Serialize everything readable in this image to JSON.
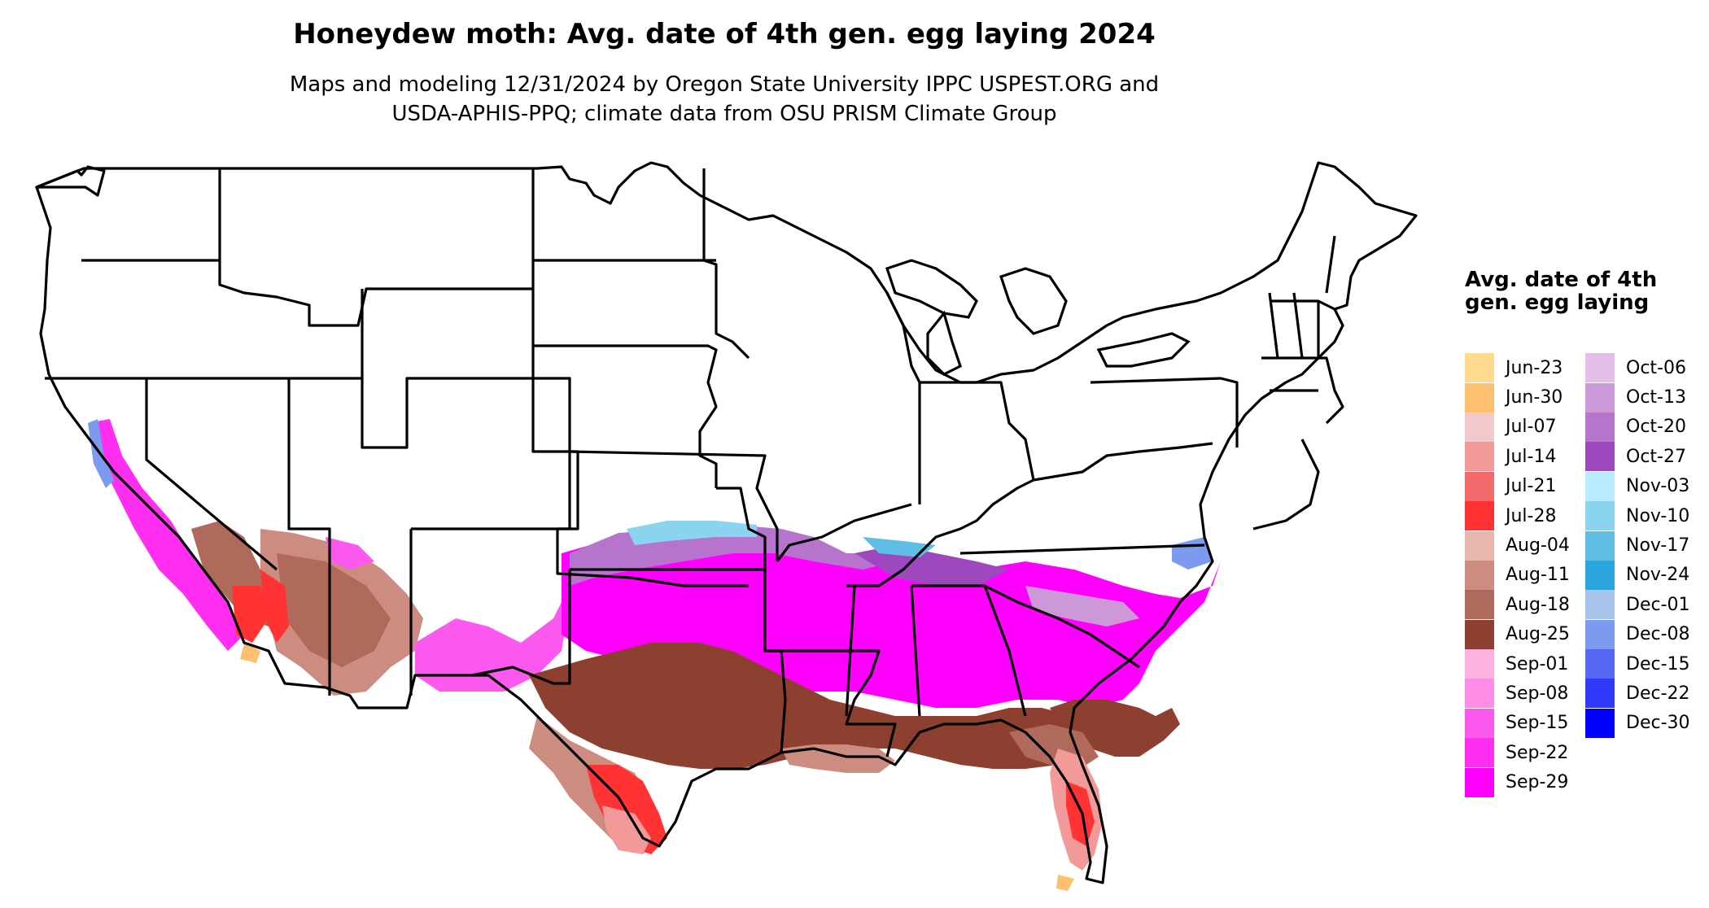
{
  "title": "Honeydew moth: Avg. date of 4th gen. egg laying 2024",
  "subtitle_line1": "Maps and modeling 12/31/2024 by Oregon State University IPPC USPEST.ORG and",
  "subtitle_line2": "USDA-APHIS-PPQ; climate data from OSU PRISM Climate Group",
  "legend": {
    "title": "Avg. date of 4th gen. egg laying",
    "col1": [
      {
        "label": "Jun-23",
        "color": "#FED98E"
      },
      {
        "label": "Jun-30",
        "color": "#FDC070"
      },
      {
        "label": "Jul-07",
        "color": "#F4C9CC"
      },
      {
        "label": "Jul-14",
        "color": "#F29A9A"
      },
      {
        "label": "Jul-21",
        "color": "#F26A6A"
      },
      {
        "label": "Jul-28",
        "color": "#FF3333"
      },
      {
        "label": "Aug-04",
        "color": "#E8B8AE"
      },
      {
        "label": "Aug-11",
        "color": "#CC8C80"
      },
      {
        "label": "Aug-18",
        "color": "#B06A5B"
      },
      {
        "label": "Aug-25",
        "color": "#8E4030"
      },
      {
        "label": "Sep-01",
        "color": "#FCB4DF"
      },
      {
        "label": "Sep-08",
        "color": "#FC8CE6"
      },
      {
        "label": "Sep-15",
        "color": "#FC5AEE"
      },
      {
        "label": "Sep-22",
        "color": "#FF2EF0"
      },
      {
        "label": "Sep-29",
        "color": "#FF00FF"
      }
    ],
    "col2": [
      {
        "label": "Oct-06",
        "color": "#E4C0E8"
      },
      {
        "label": "Oct-13",
        "color": "#CC98D8"
      },
      {
        "label": "Oct-20",
        "color": "#B674CC"
      },
      {
        "label": "Oct-27",
        "color": "#9E48BE"
      },
      {
        "label": "Nov-03",
        "color": "#B8ECFF"
      },
      {
        "label": "Nov-10",
        "color": "#8AD4F0"
      },
      {
        "label": "Nov-17",
        "color": "#5EBEE6"
      },
      {
        "label": "Nov-24",
        "color": "#2AA6DC"
      },
      {
        "label": "Dec-01",
        "color": "#A8C4EC"
      },
      {
        "label": "Dec-08",
        "color": "#7C9AEE"
      },
      {
        "label": "Dec-15",
        "color": "#5468F4"
      },
      {
        "label": "Dec-22",
        "color": "#2E3AF8"
      },
      {
        "label": "Dec-30",
        "color": "#0000FF"
      }
    ]
  }
}
